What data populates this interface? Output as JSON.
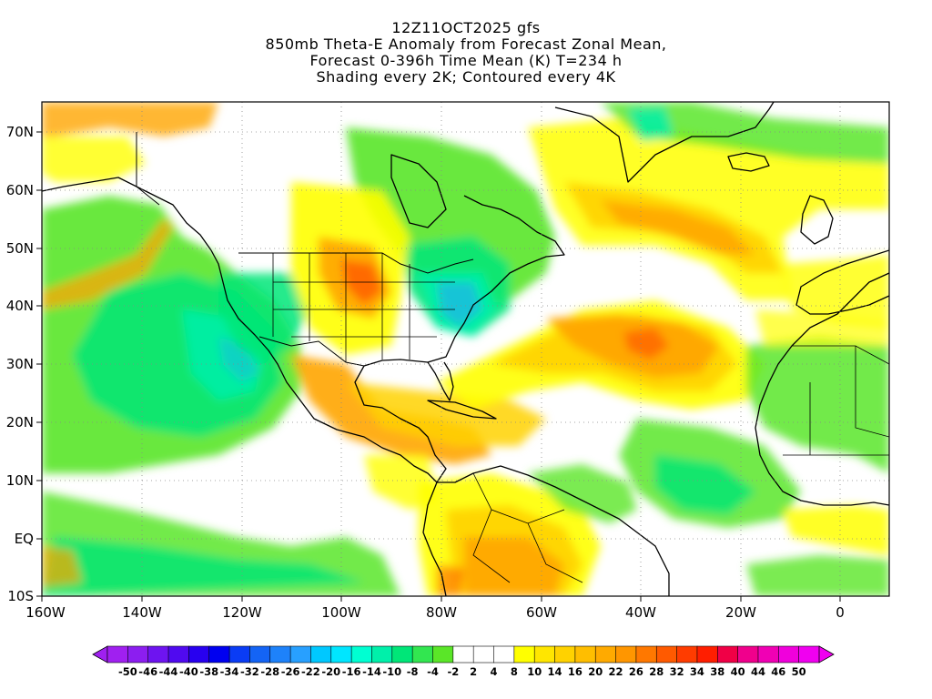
{
  "title": {
    "line1": "12Z11OCT2025 gfs",
    "line2": "850mb Theta-E Anomaly from Forecast Zonal Mean,",
    "line3": "Forecast 0-396h Time Mean (K) T=234 h",
    "line4": "Shading every 2K; Contoured every 4K"
  },
  "map": {
    "lat_labels": [
      "70N",
      "60N",
      "50N",
      "40N",
      "30N",
      "20N",
      "10N",
      "EQ",
      "10S"
    ],
    "lon_labels": [
      "160W",
      "140W",
      "120W",
      "100W",
      "80W",
      "60W",
      "40W",
      "20W",
      "0"
    ],
    "lon_range": [
      -160,
      10
    ],
    "lat_range": [
      -10,
      75
    ],
    "grid_lines": true
  },
  "colorbar": {
    "labels": [
      "-50",
      "-46",
      "-44",
      "-40",
      "-38",
      "-34",
      "-32",
      "-28",
      "-26",
      "-22",
      "-20",
      "-16",
      "-14",
      "-10",
      "-8",
      "-4",
      "-2",
      "2",
      "4",
      "8",
      "10",
      "14",
      "16",
      "20",
      "22",
      "26",
      "28",
      "32",
      "34",
      "38",
      "40",
      "44",
      "46",
      "50"
    ],
    "colors": [
      "#a020f0",
      "#8c1ef0",
      "#6e14f0",
      "#500af0",
      "#2800f0",
      "#0000f0",
      "#0a3cf5",
      "#1464f5",
      "#1e82fa",
      "#28a0ff",
      "#00c8ff",
      "#00e6ff",
      "#00ffd2",
      "#00f0aa",
      "#00e678",
      "#32e650",
      "#5ae628",
      "#ffffff",
      "#ffffff",
      "#ffffff",
      "#ffff00",
      "#ffe600",
      "#ffd200",
      "#ffbe00",
      "#ffaa00",
      "#ff9600",
      "#ff7800",
      "#ff5a00",
      "#ff3c00",
      "#ff1e00",
      "#f00046",
      "#f0008c",
      "#f000b4",
      "#f000dc",
      "#f000f0"
    ]
  },
  "palette": {
    "green": "#5ae628",
    "teal": "#00e678",
    "cyan": "#00f0aa",
    "yellow": "#ffff00",
    "gold": "#ffd200",
    "orange": "#ffa500",
    "red": "#ff5a00",
    "blue": "#28a0ff"
  }
}
